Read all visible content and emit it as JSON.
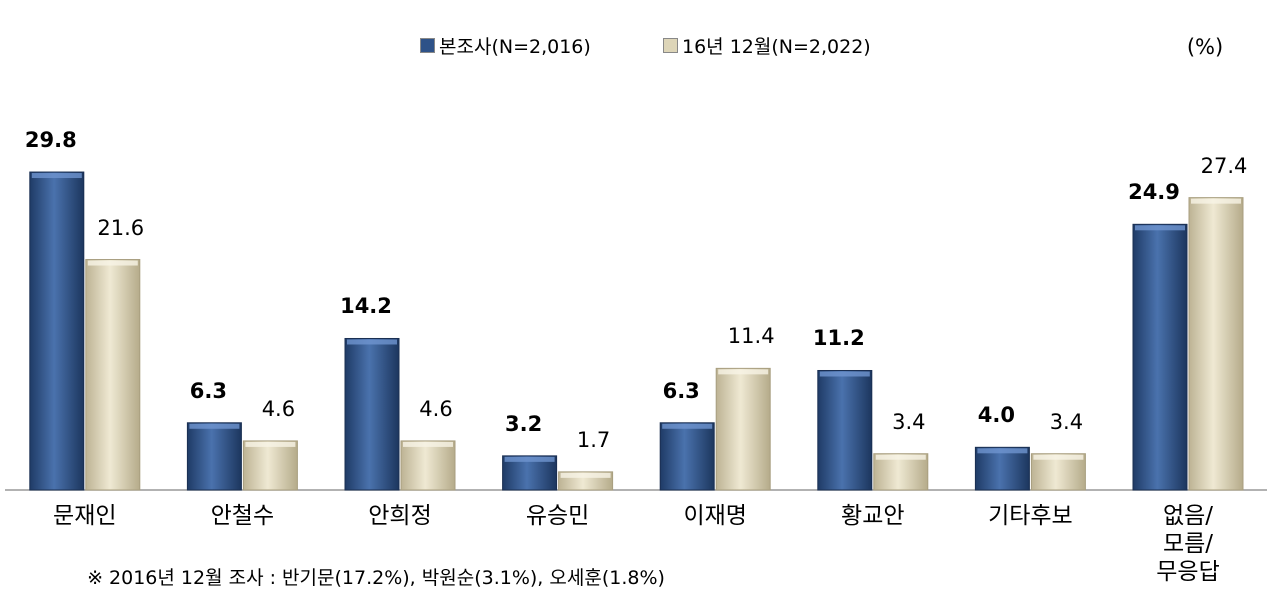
{
  "chart_data": {
    "type": "bar",
    "unit": "(%)",
    "footnote": "※ 2016년 12월 조사 : 반기문(17.2%), 박원순(3.1%), 오세훈(1.8%)",
    "categories": [
      "문재인",
      "안철수",
      "안희정",
      "유승민",
      "이재명",
      "황교안",
      "기타후보",
      "없음/\n모름/\n무응답"
    ],
    "series": [
      {
        "name": "본조사(N=2,016)",
        "color": "#2e5288",
        "values": [
          29.8,
          6.3,
          14.2,
          3.2,
          6.3,
          11.2,
          4.0,
          24.9
        ],
        "value_labels": [
          "29.8",
          "6.3",
          "14.2",
          "3.2",
          "6.3",
          "11.2",
          "4.0",
          "24.9"
        ]
      },
      {
        "name": "16년 12월(N=2,022)",
        "color": "#ddd5b8",
        "values": [
          21.6,
          4.6,
          4.6,
          1.7,
          11.4,
          3.4,
          3.4,
          27.4
        ],
        "value_labels": [
          "21.6",
          "4.6",
          "4.6",
          "1.7",
          "11.4",
          "3.4",
          "3.4",
          "27.4"
        ]
      }
    ]
  }
}
